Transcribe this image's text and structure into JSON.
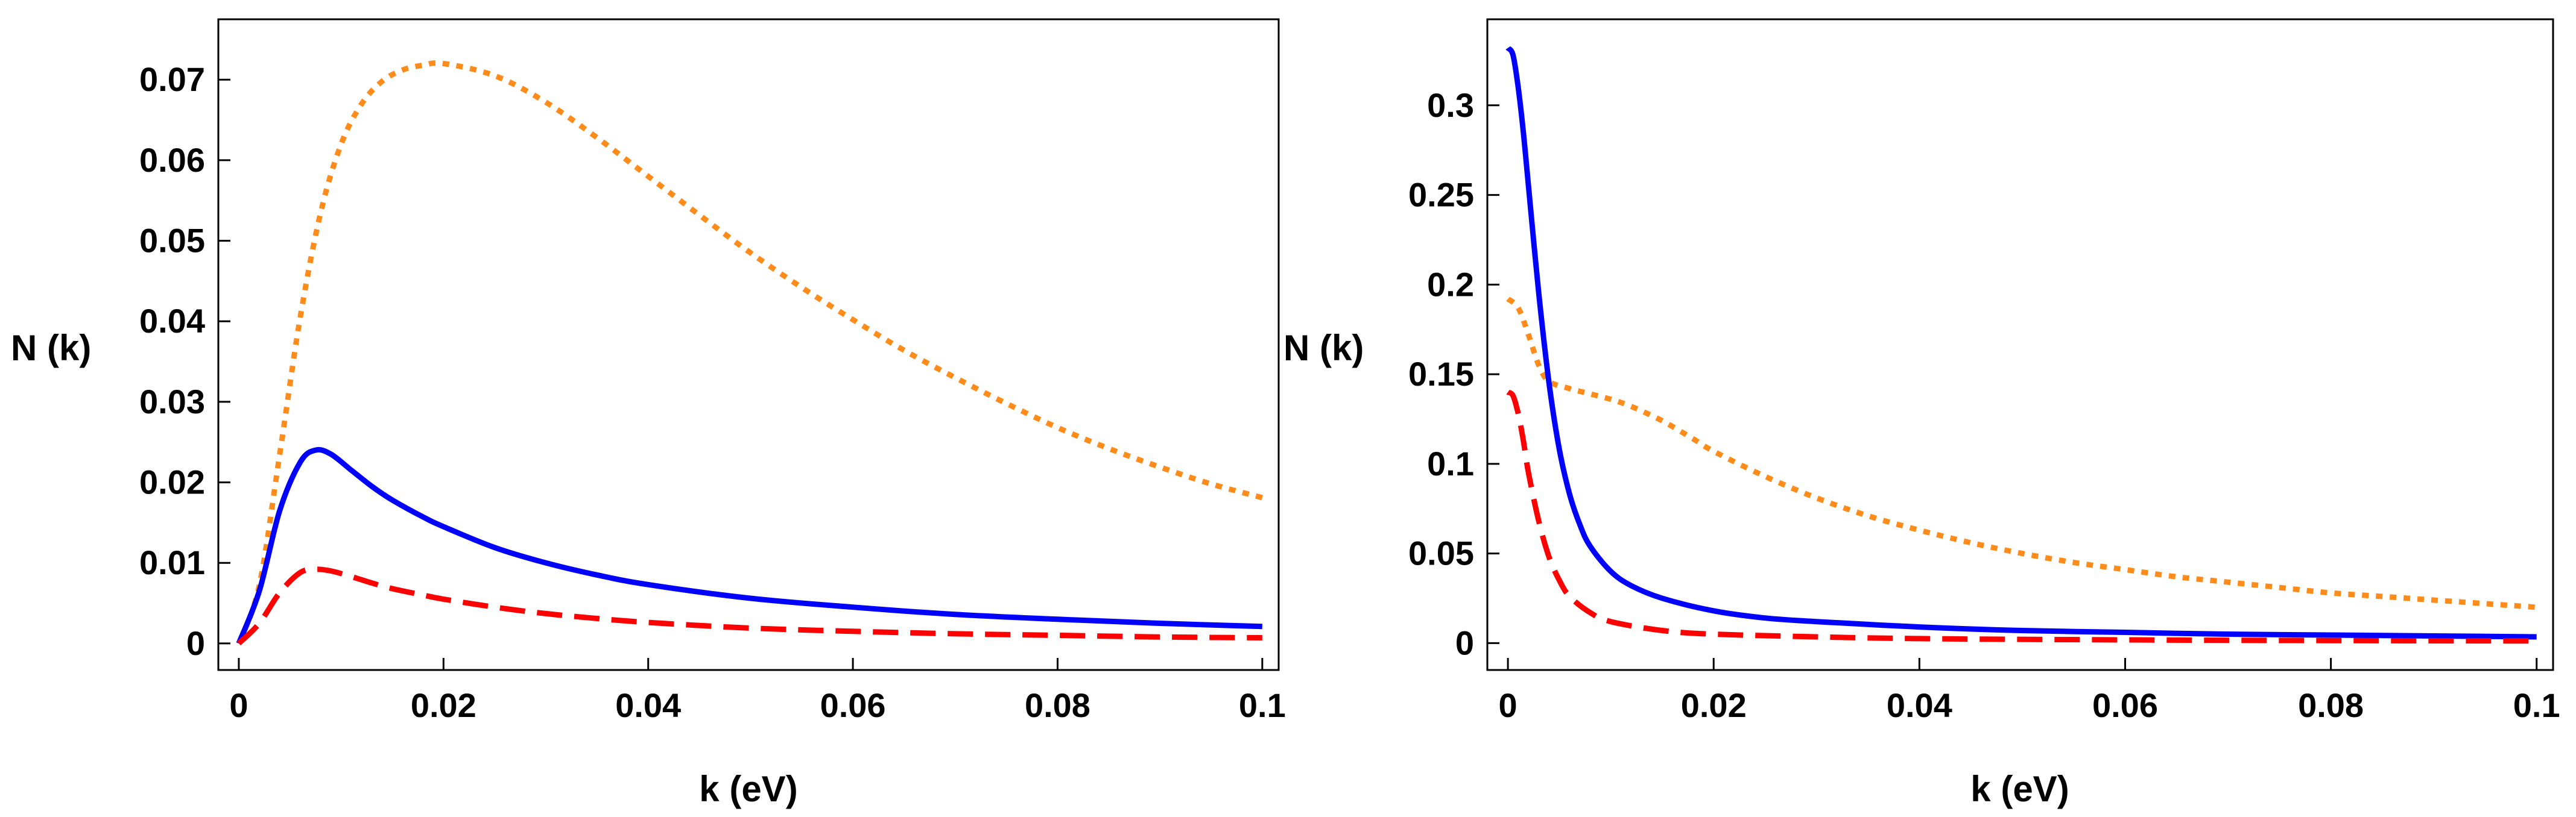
{
  "chart_data": [
    {
      "type": "line",
      "xlabel": "k (eV)",
      "ylabel": "N (k)",
      "xlim": [
        -0.002,
        0.1016
      ],
      "ylim": [
        -0.0033,
        0.0775
      ],
      "xticks": [
        0,
        0.02,
        0.04,
        0.06,
        0.08,
        0.1
      ],
      "xtick_labels": [
        "0",
        "0.02",
        "0.04",
        "0.06",
        "0.08",
        "0.1"
      ],
      "yticks": [
        0,
        0.01,
        0.02,
        0.03,
        0.04,
        0.05,
        0.06,
        0.07
      ],
      "ytick_labels": [
        "0",
        "0.01",
        "0.02",
        "0.03",
        "0.04",
        "0.05",
        "0.06",
        "0.07"
      ],
      "series": [
        {
          "name": "orange-dotted",
          "color": "#FF8C1A",
          "style": "dotted",
          "x": [
            0,
            0.002,
            0.004,
            0.006,
            0.008,
            0.01,
            0.012,
            0.014,
            0.016,
            0.018,
            0.02,
            0.025,
            0.03,
            0.035,
            0.04,
            0.045,
            0.05,
            0.055,
            0.06,
            0.065,
            0.07,
            0.075,
            0.08,
            0.085,
            0.09,
            0.095,
            0.1
          ],
          "y": [
            0,
            0.0072,
            0.0235,
            0.0405,
            0.0535,
            0.062,
            0.067,
            0.0698,
            0.0712,
            0.0718,
            0.072,
            0.0705,
            0.0672,
            0.0628,
            0.058,
            0.0532,
            0.0485,
            0.0442,
            0.0402,
            0.0364,
            0.033,
            0.0298,
            0.0268,
            0.0242,
            0.0219,
            0.0198,
            0.0181
          ]
        },
        {
          "name": "blue-solid",
          "color": "#0000FF",
          "style": "solid",
          "x": [
            0,
            0.002,
            0.004,
            0.006,
            0.0075,
            0.009,
            0.011,
            0.013,
            0.015,
            0.018,
            0.02,
            0.025,
            0.03,
            0.035,
            0.04,
            0.05,
            0.06,
            0.07,
            0.08,
            0.09,
            0.1
          ],
          "y": [
            0,
            0.0065,
            0.0165,
            0.0225,
            0.024,
            0.0235,
            0.0215,
            0.0195,
            0.0178,
            0.0157,
            0.0145,
            0.0119,
            0.01,
            0.0085,
            0.0073,
            0.0056,
            0.0045,
            0.0036,
            0.003,
            0.0025,
            0.0021
          ]
        },
        {
          "name": "red-dashed",
          "color": "#FF0000",
          "style": "dashed",
          "x": [
            0,
            0.002,
            0.004,
            0.006,
            0.0075,
            0.009,
            0.011,
            0.013,
            0.015,
            0.018,
            0.02,
            0.025,
            0.03,
            0.035,
            0.04,
            0.05,
            0.06,
            0.07,
            0.08,
            0.09,
            0.1
          ],
          "y": [
            0,
            0.0025,
            0.0063,
            0.0088,
            0.0092,
            0.009,
            0.0083,
            0.0075,
            0.0068,
            0.006,
            0.0055,
            0.0045,
            0.0037,
            0.0031,
            0.0026,
            0.0019,
            0.0015,
            0.0012,
            0.001,
            0.0008,
            0.0007
          ]
        }
      ]
    },
    {
      "type": "line",
      "xlabel": "k (eV)",
      "ylabel": "N (k)",
      "xlim": [
        -0.002,
        0.1016
      ],
      "ylim": [
        -0.015,
        0.348
      ],
      "xticks": [
        0,
        0.02,
        0.04,
        0.06,
        0.08,
        0.1
      ],
      "xtick_labels": [
        "0",
        "0.02",
        "0.04",
        "0.06",
        "0.08",
        "0.1"
      ],
      "yticks": [
        0,
        0.05,
        0.1,
        0.15,
        0.2,
        0.25,
        0.3
      ],
      "ytick_labels": [
        "0",
        "0.05",
        "0.1",
        "0.15",
        "0.2",
        "0.25",
        "0.3"
      ],
      "series": [
        {
          "name": "orange-dotted",
          "color": "#FF8C1A",
          "style": "dotted",
          "x": [
            0,
            0.001,
            0.002,
            0.003,
            0.004,
            0.006,
            0.008,
            0.01,
            0.012,
            0.015,
            0.018,
            0.02,
            0.025,
            0.03,
            0.035,
            0.04,
            0.045,
            0.05,
            0.055,
            0.06,
            0.065,
            0.07,
            0.075,
            0.08,
            0.085,
            0.09,
            0.095,
            0.1
          ],
          "y": [
            0.192,
            0.187,
            0.172,
            0.155,
            0.146,
            0.142,
            0.139,
            0.136,
            0.132,
            0.124,
            0.114,
            0.107,
            0.093,
            0.081,
            0.071,
            0.063,
            0.056,
            0.05,
            0.045,
            0.041,
            0.037,
            0.034,
            0.031,
            0.028,
            0.026,
            0.024,
            0.022,
            0.02
          ]
        },
        {
          "name": "blue-solid",
          "color": "#0000FF",
          "style": "solid",
          "x": [
            0,
            0.0005,
            0.001,
            0.0015,
            0.002,
            0.003,
            0.004,
            0.005,
            0.006,
            0.007,
            0.008,
            0.01,
            0.012,
            0.015,
            0.02,
            0.025,
            0.03,
            0.04,
            0.05,
            0.06,
            0.07,
            0.08,
            0.09,
            0.1
          ],
          "y": [
            0.332,
            0.328,
            0.31,
            0.285,
            0.255,
            0.195,
            0.145,
            0.108,
            0.083,
            0.066,
            0.054,
            0.04,
            0.032,
            0.025,
            0.018,
            0.014,
            0.012,
            0.009,
            0.007,
            0.006,
            0.005,
            0.0045,
            0.004,
            0.0035
          ]
        },
        {
          "name": "red-dashed",
          "color": "#FF0000",
          "style": "dashed",
          "x": [
            0,
            0.0005,
            0.001,
            0.0015,
            0.002,
            0.003,
            0.004,
            0.005,
            0.006,
            0.008,
            0.01,
            0.015,
            0.02,
            0.03,
            0.04,
            0.06,
            0.08,
            0.1
          ],
          "y": [
            0.14,
            0.138,
            0.128,
            0.113,
            0.095,
            0.068,
            0.048,
            0.035,
            0.026,
            0.017,
            0.012,
            0.007,
            0.005,
            0.0035,
            0.0025,
            0.0018,
            0.0014,
            0.0012
          ]
        }
      ]
    }
  ]
}
